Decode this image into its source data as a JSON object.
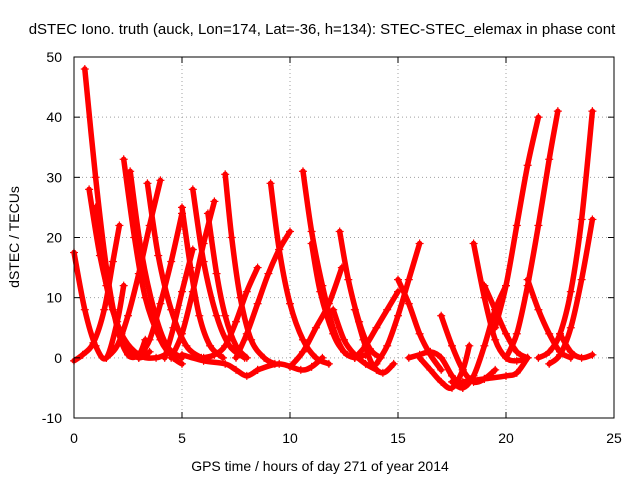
{
  "chart_data": {
    "type": "scatter",
    "title": "dSTEC Iono. truth (auck, Lon=174, Lat=-36, h=134): STEC-STEC_elemax in phase cont",
    "xlabel": "GPS time / hours of day 271 of year 2014",
    "ylabel": "dSTEC  / TECUs",
    "xlim": [
      0,
      25
    ],
    "ylim": [
      -10,
      50
    ],
    "xticks": [
      0,
      5,
      10,
      15,
      20,
      25
    ],
    "yticks": [
      -10,
      0,
      10,
      20,
      30,
      40,
      50
    ],
    "grid": true,
    "legend": "none",
    "marker": "plus",
    "color": "#ff0000",
    "series": [
      {
        "x": [
          0.0,
          0.5,
          1.0,
          1.5,
          2.0,
          2.3
        ],
        "y": [
          17.5,
          8.0,
          2.0,
          0.0,
          6.0,
          12.0
        ]
      },
      {
        "x": [
          0.0,
          0.4,
          0.9,
          1.4,
          1.8,
          2.1
        ],
        "y": [
          -0.5,
          0.5,
          2.5,
          8.0,
          16.0,
          22.0
        ]
      },
      {
        "x": [
          0.5,
          1.0,
          1.5,
          2.0,
          2.5,
          3.0,
          3.3
        ],
        "y": [
          48.0,
          30.0,
          15.0,
          5.0,
          0.5,
          0.5,
          3.0
        ]
      },
      {
        "x": [
          0.7,
          1.2,
          1.8,
          2.4,
          3.0,
          3.5
        ],
        "y": [
          28.0,
          17.0,
          8.0,
          2.0,
          0.0,
          1.0
        ]
      },
      {
        "x": [
          1.0,
          1.5,
          2.2,
          3.0,
          3.8,
          4.5
        ],
        "y": [
          25.0,
          12.0,
          4.0,
          0.5,
          0.0,
          1.0
        ]
      },
      {
        "x": [
          2.3,
          2.8,
          3.3,
          4.0,
          4.6,
          5.0
        ],
        "y": [
          33.0,
          20.0,
          10.0,
          3.0,
          0.0,
          -1.0
        ]
      },
      {
        "x": [
          2.6,
          3.1,
          3.7,
          4.3,
          5.0
        ],
        "y": [
          31.0,
          18.0,
          8.0,
          2.0,
          0.0
        ]
      },
      {
        "x": [
          3.4,
          3.9,
          4.5,
          5.2,
          5.9
        ],
        "y": [
          29.0,
          17.0,
          8.0,
          2.0,
          0.0
        ]
      },
      {
        "x": [
          1.5,
          2.0,
          2.5,
          3.0,
          3.5,
          4.0
        ],
        "y": [
          0.0,
          2.0,
          7.0,
          14.0,
          22.0,
          29.5
        ]
      },
      {
        "x": [
          3.0,
          3.5,
          4.0,
          4.5,
          5.0
        ],
        "y": [
          0.0,
          3.0,
          9.0,
          16.0,
          24.0
        ]
      },
      {
        "x": [
          4.2,
          4.6,
          5.0,
          5.5
        ],
        "y": [
          0.0,
          5.0,
          11.0,
          18.0
        ]
      },
      {
        "x": [
          5.0,
          5.4,
          5.8,
          6.3,
          6.9
        ],
        "y": [
          25.0,
          15.0,
          7.0,
          2.0,
          0.0
        ]
      },
      {
        "x": [
          5.5,
          6.0,
          6.6,
          7.2,
          7.9
        ],
        "y": [
          28.0,
          16.0,
          7.0,
          2.0,
          0.0
        ]
      },
      {
        "x": [
          4.5,
          5.0,
          5.5,
          6.0,
          6.5
        ],
        "y": [
          0.0,
          4.0,
          11.0,
          19.0,
          26.0
        ]
      },
      {
        "x": [
          6.2,
          6.6,
          7.0,
          7.5,
          8.0
        ],
        "y": [
          24.0,
          14.0,
          7.0,
          2.0,
          0.0
        ]
      },
      {
        "x": [
          7.0,
          7.3,
          7.7,
          8.2,
          8.8,
          9.3
        ],
        "y": [
          30.5,
          20.0,
          10.0,
          3.0,
          0.0,
          -1.0
        ]
      },
      {
        "x": [
          6.0,
          6.5,
          7.0,
          7.5,
          8.0,
          8.5
        ],
        "y": [
          0.0,
          0.5,
          2.0,
          6.0,
          11.0,
          15.0
        ]
      },
      {
        "x": [
          5.0,
          6.0,
          7.0,
          7.5,
          8.0,
          8.5
        ],
        "y": [
          0.5,
          -0.5,
          -1.0,
          -2.0,
          -3.0,
          -2.0
        ]
      },
      {
        "x": [
          7.5,
          8.0,
          8.5,
          9.0,
          9.5,
          10.0
        ],
        "y": [
          0.0,
          4.0,
          9.0,
          14.0,
          18.0,
          21.0
        ]
      },
      {
        "x": [
          9.1,
          9.5,
          10.0,
          10.6,
          11.2,
          11.8
        ],
        "y": [
          29.0,
          18.0,
          9.0,
          3.0,
          0.0,
          -1.0
        ]
      },
      {
        "x": [
          10.6,
          11.0,
          11.5,
          12.0,
          12.5,
          13.0
        ],
        "y": [
          31.0,
          21.0,
          12.0,
          5.0,
          1.0,
          0.0
        ]
      },
      {
        "x": [
          10.0,
          10.6,
          11.2,
          11.8,
          12.4
        ],
        "y": [
          -1.5,
          1.0,
          5.0,
          9.0,
          15.0
        ]
      },
      {
        "x": [
          8.5,
          9.5,
          10.5,
          11.0,
          11.5
        ],
        "y": [
          -2.0,
          -1.0,
          -2.0,
          -1.5,
          0.0
        ]
      },
      {
        "x": [
          11.0,
          11.4,
          12.0,
          12.5,
          13.0,
          13.5
        ],
        "y": [
          19.0,
          11.0,
          4.0,
          1.0,
          0.0,
          0.5
        ]
      },
      {
        "x": [
          12.3,
          12.7,
          13.2,
          13.7,
          14.2
        ],
        "y": [
          21.0,
          13.0,
          6.0,
          1.5,
          0.0
        ]
      },
      {
        "x": [
          13.0,
          13.4,
          13.8,
          14.3,
          14.8
        ],
        "y": [
          8.0,
          3.0,
          -1.0,
          -2.5,
          -1.0
        ]
      },
      {
        "x": [
          12.0,
          12.5,
          13.0,
          13.5,
          14.0
        ],
        "y": [
          8.0,
          3.0,
          0.5,
          -1.0,
          -2.0
        ]
      },
      {
        "x": [
          14.0,
          14.5,
          15.0,
          15.5,
          16.0
        ],
        "y": [
          -1.0,
          2.0,
          7.0,
          13.0,
          19.0
        ]
      },
      {
        "x": [
          13.0,
          13.5,
          14.0,
          14.5,
          15.0
        ],
        "y": [
          0.0,
          2.0,
          5.0,
          8.0,
          11.0
        ]
      },
      {
        "x": [
          15.0,
          15.5,
          16.0,
          16.5,
          17.0
        ],
        "y": [
          13.0,
          9.0,
          4.0,
          0.5,
          -2.0
        ]
      },
      {
        "x": [
          15.5,
          16.0,
          16.5,
          17.0,
          17.5,
          18.0
        ],
        "y": [
          0.0,
          0.5,
          1.0,
          0.0,
          -3.0,
          -5.0
        ]
      },
      {
        "x": [
          16.0,
          16.5,
          17.0,
          17.5,
          18.0,
          18.3
        ],
        "y": [
          0.0,
          -2.0,
          -4.0,
          -5.0,
          -2.0,
          2.0
        ]
      },
      {
        "x": [
          17.0,
          17.5,
          18.0,
          18.5,
          19.0,
          19.5
        ],
        "y": [
          7.0,
          2.0,
          -2.0,
          -4.0,
          -3.5,
          -2.0
        ]
      },
      {
        "x": [
          17.5,
          18.0,
          18.5,
          19.0,
          19.5,
          20.0
        ],
        "y": [
          -4.0,
          -5.0,
          -3.0,
          2.0,
          8.0,
          12.0
        ]
      },
      {
        "x": [
          18.5,
          19.0,
          19.5,
          20.0,
          20.5,
          21.0
        ],
        "y": [
          19.0,
          10.0,
          3.0,
          0.0,
          -0.5,
          0.0
        ]
      },
      {
        "x": [
          18.0,
          19.0,
          20.0,
          20.5,
          21.0
        ],
        "y": [
          -4.0,
          -3.5,
          -3.0,
          -2.5,
          0.0
        ]
      },
      {
        "x": [
          19.0,
          19.5,
          20.0,
          20.5,
          21.0
        ],
        "y": [
          12.0,
          8.0,
          4.0,
          1.0,
          0.0
        ]
      },
      {
        "x": [
          19.5,
          20.0,
          20.5,
          21.0,
          21.5
        ],
        "y": [
          5.0,
          12.0,
          22.0,
          32.0,
          40.0
        ]
      },
      {
        "x": [
          20.0,
          20.5,
          21.0,
          21.5,
          22.0,
          22.4
        ],
        "y": [
          0.0,
          4.0,
          12.0,
          22.0,
          33.0,
          41.0
        ]
      },
      {
        "x": [
          21.0,
          21.5,
          22.0,
          22.5,
          23.0
        ],
        "y": [
          13.0,
          8.0,
          4.0,
          1.0,
          0.0
        ]
      },
      {
        "x": [
          21.5,
          22.0,
          22.5,
          23.0,
          23.5,
          24.0
        ],
        "y": [
          0.0,
          1.0,
          4.0,
          11.0,
          23.0,
          41.0
        ]
      },
      {
        "x": [
          22.0,
          22.5,
          23.0,
          23.5,
          24.0
        ],
        "y": [
          -1.0,
          0.5,
          5.0,
          13.0,
          23.0
        ]
      },
      {
        "x": [
          22.5,
          23.0,
          23.5,
          24.0
        ],
        "y": [
          4.0,
          1.0,
          0.0,
          0.5
        ]
      }
    ]
  }
}
